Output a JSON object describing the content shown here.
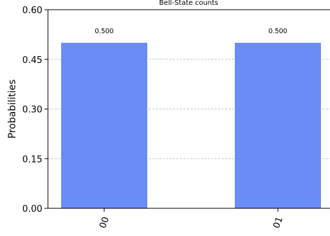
{
  "chart_data": {
    "type": "bar",
    "title": "Bell-State counts",
    "ylabel": "Probabilities",
    "xlabel": "",
    "categories": [
      "00",
      "01"
    ],
    "values": [
      0.5,
      0.5
    ],
    "value_labels": [
      "0.500",
      "0.500"
    ],
    "ylim": [
      0,
      0.6
    ],
    "yticks": [
      0.0,
      0.15,
      0.3,
      0.45,
      0.6
    ],
    "ytick_labels": [
      "0.00",
      "0.15",
      "0.30",
      "0.45",
      "0.60"
    ],
    "grid": "y-dashed",
    "bar_color": "#6a8cf7"
  }
}
